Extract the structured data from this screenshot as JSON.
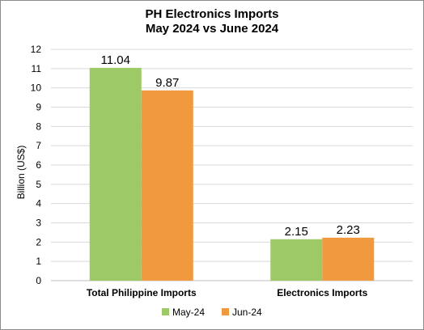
{
  "chart_data": {
    "type": "bar",
    "title_line1": "PH Electronics Imports",
    "title_line2": "May 2024 vs June 2024",
    "xlabel": "",
    "ylabel": "Billion (US$)",
    "ylim": [
      0,
      12
    ],
    "yticks": [
      "0",
      "1",
      "2",
      "3",
      "4",
      "5",
      "6",
      "7",
      "8",
      "9",
      "10",
      "11",
      "12"
    ],
    "categories": [
      "Total Philippine Imports",
      "Electronics Imports"
    ],
    "series": [
      {
        "name": "May-24",
        "color": "#9dc966",
        "values": [
          11.04,
          2.15
        ],
        "labels": [
          "11.04",
          "2.15"
        ]
      },
      {
        "name": "Jun-24",
        "color": "#f0993e",
        "values": [
          9.87,
          2.23
        ],
        "labels": [
          "9.87",
          "2.23"
        ]
      }
    ],
    "grid": true,
    "legend": "bottom"
  }
}
